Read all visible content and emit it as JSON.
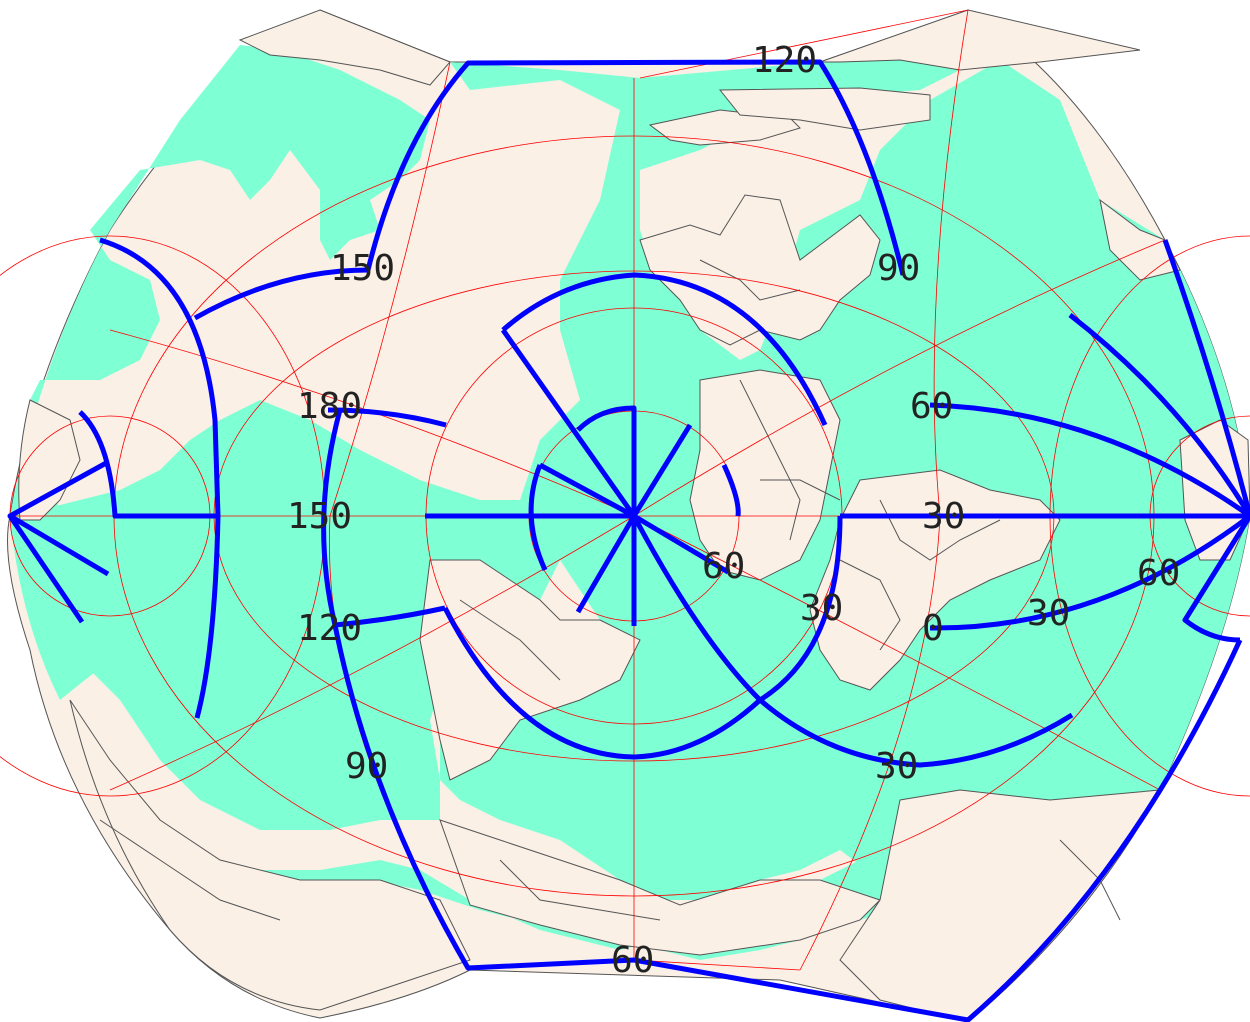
{
  "map": {
    "colors": {
      "ocean": "#7fffd4",
      "land": "#faf0e6",
      "coastline": "#555555",
      "graticule": "#ff0000",
      "highlight": "#0000ff"
    },
    "labels": {
      "top": "120",
      "upper_left": "150",
      "left_180": "180",
      "left_150": "150",
      "left_120": "120",
      "lower_left_90": "90",
      "bottom": "60",
      "upper_right_90": "90",
      "right_60": "60",
      "center_30": "30",
      "center_60": "60",
      "mid_30": "30",
      "mid_0": "0",
      "right_30": "30",
      "far_right_60": "60",
      "lower_right_30": "30"
    }
  }
}
